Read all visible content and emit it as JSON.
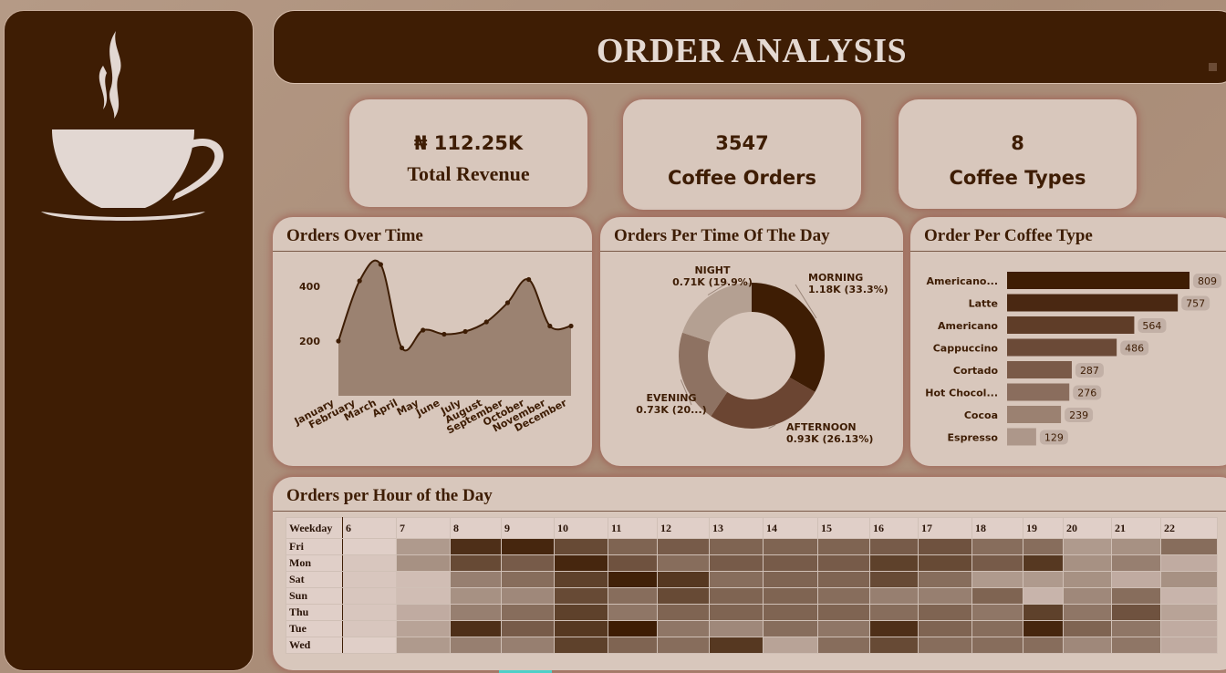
{
  "header": {
    "title": "ORDER ANALYSIS"
  },
  "sidebar": {
    "logo_icon": "coffee-cup-icon"
  },
  "kpis": [
    {
      "value": "₦ 112.25K",
      "label": "Total Revenue"
    },
    {
      "value": "3547",
      "label": "Coffee Orders"
    },
    {
      "value": "8",
      "label": "Coffee Types"
    }
  ],
  "orders_over_time": {
    "title": "Orders Over Time",
    "chart_data": {
      "type": "area",
      "categories": [
        "January",
        "February",
        "March",
        "April",
        "May",
        "June",
        "July",
        "August",
        "September",
        "October",
        "November",
        "December"
      ],
      "values": [
        200,
        420,
        480,
        175,
        240,
        225,
        235,
        270,
        340,
        425,
        255,
        255
      ],
      "ylim": [
        0,
        480
      ],
      "yticks": [
        "200",
        "400"
      ],
      "color": "#9b8271"
    }
  },
  "time_of_day": {
    "title": "Orders Per Time Of The Day",
    "chart_data": {
      "type": "pie",
      "slices": [
        {
          "name": "MORNING",
          "value": 33.3,
          "label": "1.18K (33.3%)",
          "color": "#3e1d04"
        },
        {
          "name": "AFTERNOON",
          "value": 26.13,
          "label": "0.93K (26.13%)",
          "color": "#6b4532"
        },
        {
          "name": "EVENING",
          "value": 20.67,
          "label": "0.73K (20...)",
          "color": "#8e7262"
        },
        {
          "name": "NIGHT",
          "value": 19.9,
          "label": "0.71K (19.9%)",
          "color": "#b4a092"
        }
      ]
    }
  },
  "coffee_type": {
    "title": "Order Per Coffee Type",
    "chart_data": {
      "type": "bar",
      "categories": [
        "Americano...",
        "Latte",
        "Americano",
        "Cappuccino",
        "Cortado",
        "Hot Chocol...",
        "Cocoa",
        "Espresso"
      ],
      "values": [
        809,
        757,
        564,
        486,
        287,
        276,
        239,
        129
      ],
      "value_labels": [
        "809",
        "757",
        "564",
        "486",
        "287",
        "276",
        "239",
        "129"
      ],
      "colors": [
        "#3e1d04",
        "#4a2812",
        "#5f3d28",
        "#6b4a37",
        "#7a5a48",
        "#8a6d5d",
        "#9b8171",
        "#ad978a"
      ],
      "xlim": [
        0,
        809
      ]
    }
  },
  "hourly": {
    "title": "Orders per Hour of the Day",
    "row_header": "Weekday",
    "hours": [
      "6",
      "7",
      "8",
      "9",
      "10",
      "11",
      "12",
      "13",
      "14",
      "15",
      "16",
      "17",
      "18",
      "19",
      "20",
      "21",
      "22"
    ],
    "days": [
      "Fri",
      "Mon",
      "Sat",
      "Sun",
      "Thu",
      "Tue",
      "Wed"
    ],
    "intensity": [
      [
        0.0,
        0.3,
        0.9,
        0.95,
        0.75,
        0.6,
        0.65,
        0.6,
        0.6,
        0.6,
        0.65,
        0.7,
        0.55,
        0.55,
        0.3,
        0.35,
        0.55
      ],
      [
        0.05,
        0.35,
        0.75,
        0.65,
        0.95,
        0.7,
        0.55,
        0.65,
        0.65,
        0.65,
        0.8,
        0.75,
        0.65,
        0.85,
        0.35,
        0.45,
        0.2
      ],
      [
        0.05,
        0.1,
        0.45,
        0.55,
        0.8,
        0.98,
        0.85,
        0.55,
        0.6,
        0.6,
        0.75,
        0.55,
        0.3,
        0.3,
        0.35,
        0.2,
        0.35
      ],
      [
        0.05,
        0.1,
        0.35,
        0.4,
        0.75,
        0.55,
        0.75,
        0.6,
        0.6,
        0.55,
        0.45,
        0.45,
        0.6,
        0.15,
        0.4,
        0.55,
        0.15
      ],
      [
        0.05,
        0.2,
        0.45,
        0.55,
        0.8,
        0.5,
        0.6,
        0.6,
        0.6,
        0.6,
        0.55,
        0.6,
        0.5,
        0.8,
        0.5,
        0.7,
        0.25
      ],
      [
        0.05,
        0.25,
        0.9,
        0.65,
        0.85,
        1.0,
        0.5,
        0.4,
        0.55,
        0.5,
        0.9,
        0.6,
        0.55,
        0.95,
        0.6,
        0.5,
        0.2
      ],
      [
        0.0,
        0.3,
        0.45,
        0.45,
        0.8,
        0.6,
        0.55,
        0.85,
        0.25,
        0.55,
        0.75,
        0.55,
        0.55,
        0.55,
        0.4,
        0.5,
        0.2
      ]
    ]
  }
}
